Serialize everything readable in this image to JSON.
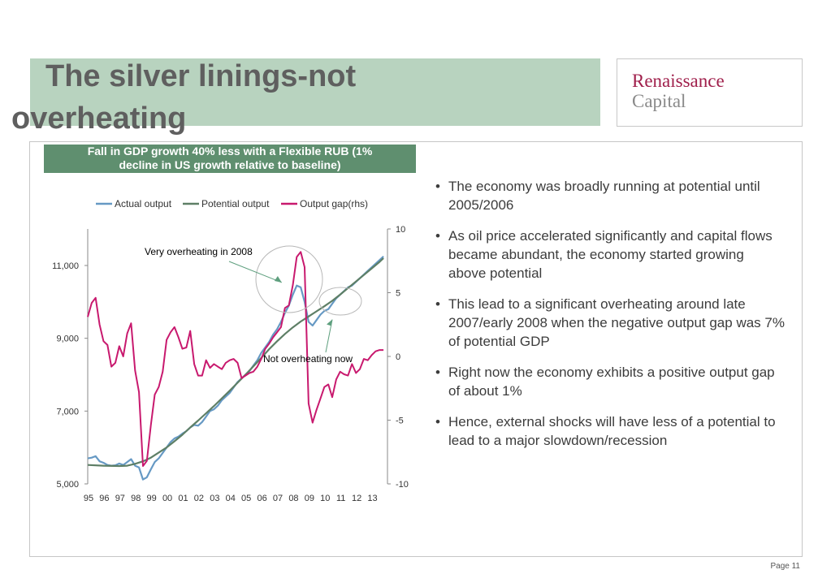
{
  "slide": {
    "title_line1": "The silver linings-not",
    "title_line2": "overheating",
    "logo_line1": "Renaissance",
    "logo_line2": "Capital",
    "chart_header_line1": "Fall in GDP growth 40% less with a  Flexible RUB (1%",
    "chart_header_line2": "decline in US growth relative to baseline)",
    "bullets": [
      "The economy was broadly running at potential until 2005/2006",
      "As oil price accelerated significantly and capital flows became abundant, the economy started growing above potential",
      "This lead to a significant overheating around late 2007/early 2008 when the negative output gap was 7% of potential GDP",
      "Right now the economy exhibits a positive output gap of about 1%",
      "Hence, external shocks will have less of a potential to lead to a major slowdown/recession"
    ],
    "page_label": "Page 11"
  },
  "chart_data": {
    "type": "line",
    "x_tick_labels": [
      "95",
      "96",
      "97",
      "98",
      "99",
      "00",
      "01",
      "02",
      "03",
      "04",
      "05",
      "06",
      "07",
      "08",
      "09",
      "10",
      "11",
      "12",
      "13"
    ],
    "x_range": [
      1995.0,
      2014.0
    ],
    "ylim_left": [
      5000,
      11000
    ],
    "yticks_left": [
      "5,000",
      "7,000",
      "9,000",
      "11,000"
    ],
    "ylim_right": [
      -10,
      10
    ],
    "yticks_right": [
      "-10",
      "-5",
      "0",
      "5",
      "10"
    ],
    "legend": [
      "Actual output",
      "Potential output",
      "Output gap(rhs)"
    ],
    "legend_position": "top",
    "colors": {
      "actual": "#6699c4",
      "potential": "#5e7f66",
      "gap": "#c8196e",
      "annotation_arrow": "#5e9f7e",
      "circle": "#b8b8b8"
    },
    "series": [
      {
        "name": "Actual output",
        "axis": "left",
        "values": [
          [
            1995.0,
            5700
          ],
          [
            1995.25,
            5720
          ],
          [
            1995.5,
            5760
          ],
          [
            1995.75,
            5620
          ],
          [
            1996.0,
            5580
          ],
          [
            1996.25,
            5520
          ],
          [
            1996.5,
            5500
          ],
          [
            1996.75,
            5510
          ],
          [
            1997.0,
            5560
          ],
          [
            1997.25,
            5520
          ],
          [
            1997.5,
            5600
          ],
          [
            1997.75,
            5680
          ],
          [
            1998.0,
            5500
          ],
          [
            1998.25,
            5450
          ],
          [
            1998.5,
            5120
          ],
          [
            1998.75,
            5180
          ],
          [
            1999.0,
            5400
          ],
          [
            1999.25,
            5600
          ],
          [
            1999.5,
            5700
          ],
          [
            1999.75,
            5850
          ],
          [
            2000.0,
            6000
          ],
          [
            2000.25,
            6150
          ],
          [
            2000.5,
            6250
          ],
          [
            2000.75,
            6300
          ],
          [
            2001.0,
            6380
          ],
          [
            2001.25,
            6450
          ],
          [
            2001.5,
            6550
          ],
          [
            2001.75,
            6620
          ],
          [
            2002.0,
            6600
          ],
          [
            2002.25,
            6700
          ],
          [
            2002.5,
            6850
          ],
          [
            2002.75,
            7000
          ],
          [
            2003.0,
            7050
          ],
          [
            2003.25,
            7150
          ],
          [
            2003.5,
            7300
          ],
          [
            2003.75,
            7400
          ],
          [
            2004.0,
            7500
          ],
          [
            2004.25,
            7650
          ],
          [
            2004.5,
            7800
          ],
          [
            2004.75,
            7900
          ],
          [
            2005.0,
            8000
          ],
          [
            2005.25,
            8100
          ],
          [
            2005.5,
            8250
          ],
          [
            2005.75,
            8400
          ],
          [
            2006.0,
            8600
          ],
          [
            2006.25,
            8750
          ],
          [
            2006.5,
            8900
          ],
          [
            2006.75,
            9100
          ],
          [
            2007.0,
            9250
          ],
          [
            2007.25,
            9450
          ],
          [
            2007.5,
            9700
          ],
          [
            2007.75,
            9900
          ],
          [
            2008.0,
            10200
          ],
          [
            2008.25,
            10450
          ],
          [
            2008.5,
            10400
          ],
          [
            2008.75,
            10000
          ],
          [
            2009.0,
            9450
          ],
          [
            2009.25,
            9350
          ],
          [
            2009.5,
            9500
          ],
          [
            2009.75,
            9650
          ],
          [
            2010.0,
            9750
          ],
          [
            2010.25,
            9800
          ],
          [
            2010.5,
            9950
          ],
          [
            2010.75,
            10100
          ],
          [
            2011.0,
            10200
          ],
          [
            2011.25,
            10300
          ],
          [
            2011.5,
            10400
          ],
          [
            2011.75,
            10450
          ],
          [
            2012.0,
            10550
          ],
          [
            2012.25,
            10650
          ],
          [
            2012.5,
            10750
          ],
          [
            2012.75,
            10850
          ],
          [
            2013.0,
            10950
          ],
          [
            2013.25,
            11050
          ],
          [
            2013.5,
            11150
          ],
          [
            2013.75,
            11250
          ]
        ]
      },
      {
        "name": "Potential output",
        "axis": "left",
        "values": [
          [
            1995.0,
            5520
          ],
          [
            1996.0,
            5500
          ],
          [
            1997.0,
            5490
          ],
          [
            1997.5,
            5500
          ],
          [
            1998.0,
            5550
          ],
          [
            1998.5,
            5620
          ],
          [
            1999.0,
            5720
          ],
          [
            1999.5,
            5860
          ],
          [
            2000.0,
            6000
          ],
          [
            2000.5,
            6170
          ],
          [
            2001.0,
            6350
          ],
          [
            2001.5,
            6550
          ],
          [
            2002.0,
            6740
          ],
          [
            2002.5,
            6940
          ],
          [
            2003.0,
            7140
          ],
          [
            2003.5,
            7350
          ],
          [
            2004.0,
            7560
          ],
          [
            2004.5,
            7780
          ],
          [
            2005.0,
            8000
          ],
          [
            2005.5,
            8230
          ],
          [
            2006.0,
            8460
          ],
          [
            2006.5,
            8700
          ],
          [
            2007.0,
            8920
          ],
          [
            2007.5,
            9120
          ],
          [
            2008.0,
            9300
          ],
          [
            2008.5,
            9460
          ],
          [
            2009.0,
            9600
          ],
          [
            2009.5,
            9740
          ],
          [
            2010.0,
            9880
          ],
          [
            2010.5,
            10030
          ],
          [
            2011.0,
            10200
          ],
          [
            2011.5,
            10380
          ],
          [
            2012.0,
            10560
          ],
          [
            2012.5,
            10740
          ],
          [
            2013.0,
            10920
          ],
          [
            2013.5,
            11100
          ],
          [
            2013.75,
            11200
          ]
        ]
      },
      {
        "name": "Output gap(rhs)",
        "axis": "right",
        "values": [
          [
            1995.0,
            3.1
          ],
          [
            1995.25,
            4.2
          ],
          [
            1995.5,
            4.6
          ],
          [
            1995.75,
            2.5
          ],
          [
            1996.0,
            1.2
          ],
          [
            1996.25,
            0.9
          ],
          [
            1996.5,
            -0.8
          ],
          [
            1996.75,
            -0.5
          ],
          [
            1997.0,
            0.8
          ],
          [
            1997.25,
            0.0
          ],
          [
            1997.5,
            1.8
          ],
          [
            1997.75,
            2.6
          ],
          [
            1998.0,
            -1.1
          ],
          [
            1998.25,
            -2.8
          ],
          [
            1998.5,
            -8.6
          ],
          [
            1998.75,
            -8.2
          ],
          [
            1999.0,
            -5.4
          ],
          [
            1999.25,
            -3.0
          ],
          [
            1999.5,
            -2.4
          ],
          [
            1999.75,
            -1.2
          ],
          [
            2000.0,
            1.3
          ],
          [
            2000.25,
            1.9
          ],
          [
            2000.5,
            2.3
          ],
          [
            2000.75,
            1.5
          ],
          [
            2001.0,
            0.6
          ],
          [
            2001.25,
            0.7
          ],
          [
            2001.5,
            2.0
          ],
          [
            2001.75,
            -0.6
          ],
          [
            2002.0,
            -1.5
          ],
          [
            2002.25,
            -1.5
          ],
          [
            2002.5,
            -0.3
          ],
          [
            2002.75,
            -0.9
          ],
          [
            2003.0,
            -0.6
          ],
          [
            2003.25,
            -0.8
          ],
          [
            2003.5,
            -1.0
          ],
          [
            2003.75,
            -0.5
          ],
          [
            2004.0,
            -0.3
          ],
          [
            2004.25,
            -0.2
          ],
          [
            2004.5,
            -0.5
          ],
          [
            2004.75,
            -1.7
          ],
          [
            2005.0,
            -1.5
          ],
          [
            2005.25,
            -1.3
          ],
          [
            2005.5,
            -1.2
          ],
          [
            2005.75,
            -0.8
          ],
          [
            2006.0,
            -0.2
          ],
          [
            2006.25,
            0.6
          ],
          [
            2006.5,
            1.0
          ],
          [
            2006.75,
            1.5
          ],
          [
            2007.0,
            1.9
          ],
          [
            2007.25,
            2.3
          ],
          [
            2007.5,
            3.8
          ],
          [
            2007.75,
            4.0
          ],
          [
            2008.0,
            5.6
          ],
          [
            2008.25,
            7.8
          ],
          [
            2008.5,
            8.2
          ],
          [
            2008.75,
            7.0
          ],
          [
            2009.0,
            -3.7
          ],
          [
            2009.25,
            -5.2
          ],
          [
            2009.5,
            -4.2
          ],
          [
            2009.75,
            -3.3
          ],
          [
            2010.0,
            -2.4
          ],
          [
            2010.25,
            -2.2
          ],
          [
            2010.5,
            -3.2
          ],
          [
            2010.75,
            -1.8
          ],
          [
            2011.0,
            -1.2
          ],
          [
            2011.25,
            -1.4
          ],
          [
            2011.5,
            -1.5
          ],
          [
            2011.75,
            -0.6
          ],
          [
            2012.0,
            -1.3
          ],
          [
            2012.25,
            -1.0
          ],
          [
            2012.5,
            -0.2
          ],
          [
            2012.75,
            -0.3
          ],
          [
            2013.0,
            0.1
          ],
          [
            2013.25,
            0.4
          ],
          [
            2013.5,
            0.5
          ],
          [
            2013.75,
            0.5
          ]
        ]
      }
    ],
    "annotations": [
      {
        "text": "Very overheating in 2008",
        "target_x": 2007.3,
        "target_y_right": 5.8
      },
      {
        "text": "Not overheating now",
        "target_x": 2010.5,
        "target_y_right": 2.9
      }
    ]
  }
}
